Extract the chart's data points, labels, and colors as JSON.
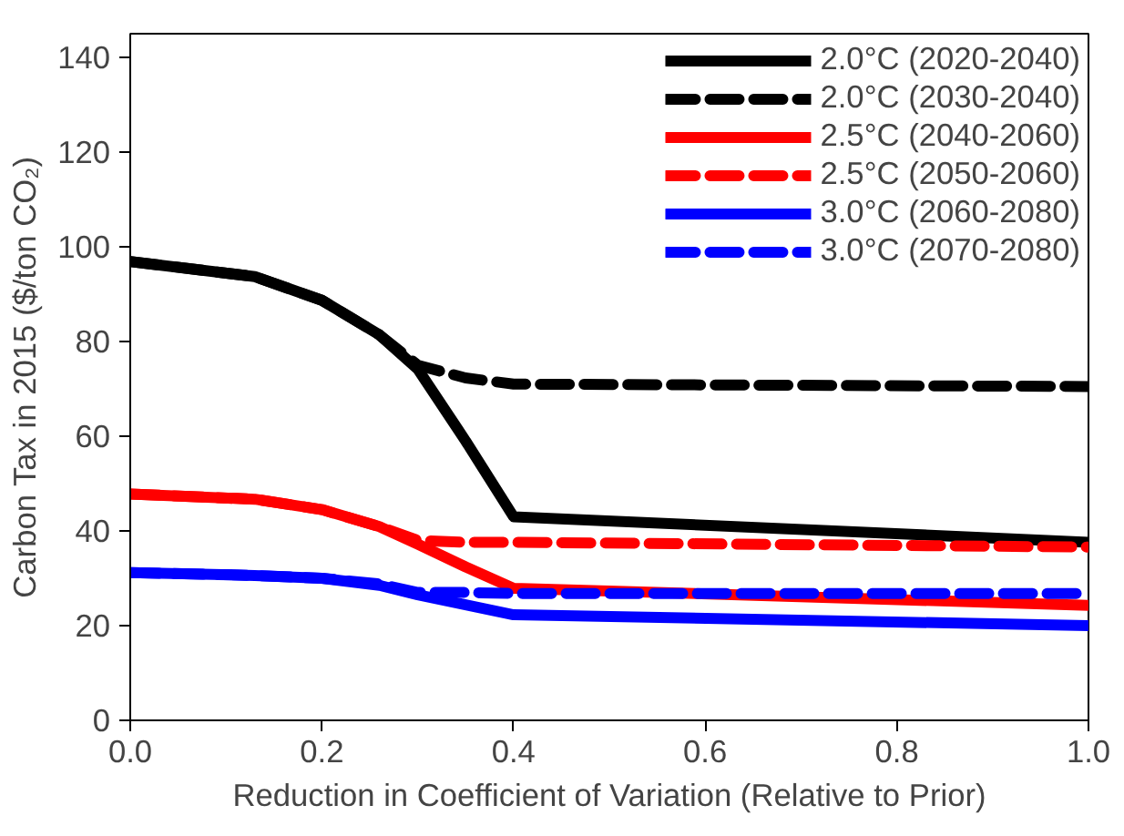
{
  "chart_data": {
    "type": "line",
    "xlabel": "Reduction in Coefficient of Variation (Relative to Prior)",
    "ylabel": "Carbon Tax in 2015 ($/ton CO₂)",
    "x": [
      0,
      0.13,
      0.2,
      0.26,
      0.3,
      0.35,
      0.4,
      1.0
    ],
    "series": [
      {
        "name": "2.0°C (2020-2040)",
        "color": "#000000",
        "line_style": "solid",
        "values": [
          96.9,
          93.7,
          88.7,
          81.4,
          74.2,
          59,
          43,
          37.6
        ]
      },
      {
        "name": "2.0°C (2030-2040)",
        "color": "#000000",
        "line_style": "dashed",
        "values": [
          96.9,
          93.7,
          88.7,
          81.4,
          75,
          72.3,
          71,
          70.5
        ]
      },
      {
        "name": "2.5°C (2040-2060)",
        "color": "#ff0000",
        "line_style": "solid",
        "values": [
          47.8,
          46.7,
          44.5,
          40.9,
          37.2,
          32.4,
          27.9,
          24.3
        ]
      },
      {
        "name": "2.5°C (2050-2060)",
        "color": "#ff0000",
        "line_style": "dashed",
        "values": [
          47.8,
          46.7,
          44.5,
          40.9,
          38,
          37.6,
          37.6,
          36.6
        ]
      },
      {
        "name": "3.0°C (2060-2080)",
        "color": "#0000ff",
        "line_style": "solid",
        "values": [
          31.2,
          30.6,
          30,
          28.5,
          26.5,
          24.4,
          22.3,
          20
        ]
      },
      {
        "name": "3.0°C (2070-2080)",
        "color": "#0000ff",
        "line_style": "dashed",
        "values": [
          31.2,
          30.6,
          30,
          28.8,
          27,
          27,
          26.8,
          26.8
        ]
      }
    ],
    "xlim": [
      0,
      1
    ],
    "xticks": [
      {
        "value": 0,
        "label": "0.0"
      },
      {
        "value": 0.2,
        "label": "0.2"
      },
      {
        "value": 0.4,
        "label": "0.4"
      },
      {
        "value": 0.6,
        "label": "0.6"
      },
      {
        "value": 0.8,
        "label": "0.8"
      },
      {
        "value": 1,
        "label": "1.0"
      }
    ],
    "ylim": [
      0,
      145
    ],
    "yticks": [
      0,
      20,
      40,
      60,
      80,
      100,
      120,
      140
    ],
    "grid": false,
    "legend": "top right"
  }
}
